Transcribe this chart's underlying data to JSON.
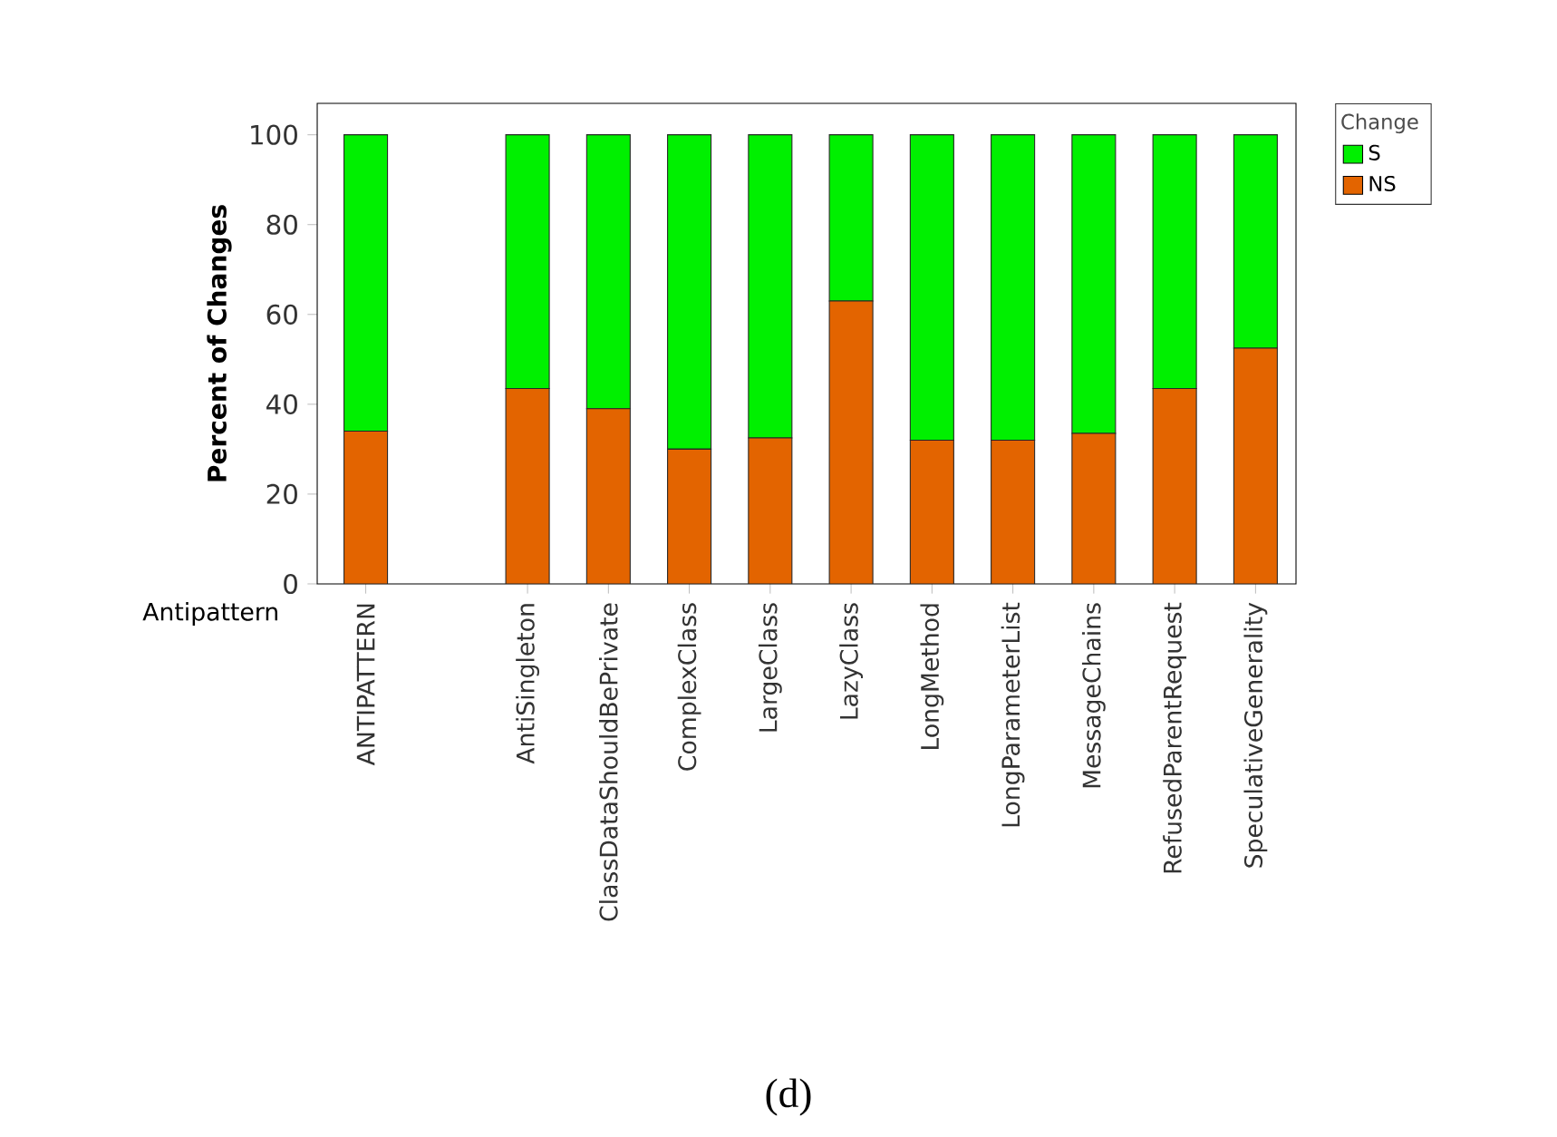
{
  "chart_data": {
    "type": "bar",
    "stacked": true,
    "xlabel": "Antipattern",
    "ylabel": "Percent of Changes",
    "legend_title": "Change",
    "legend": "right",
    "categories": [
      "ANTIPATTERN",
      null,
      "AntiSingleton",
      "ClassDataShouldBePrivate",
      "ComplexClass",
      "LargeClass",
      "LazyClass",
      "LongMethod",
      "LongParameterList",
      "MessageChains",
      "RefusedParentRequest",
      "SpeculativeGenerality"
    ],
    "series": [
      {
        "name": "NS",
        "color": "#e36400",
        "values": [
          34,
          null,
          43.5,
          39,
          30,
          32.5,
          63,
          32,
          32,
          33.5,
          43.5,
          52.5
        ]
      },
      {
        "name": "S",
        "color": "#00f000",
        "values": [
          66,
          null,
          56.5,
          61,
          70,
          67.5,
          37,
          68,
          68,
          66.5,
          56.5,
          47.5
        ]
      }
    ],
    "ylim": [
      0,
      107
    ],
    "yticks": [
      0,
      20,
      40,
      60,
      80,
      100
    ],
    "annotations": [
      "(d)"
    ]
  }
}
